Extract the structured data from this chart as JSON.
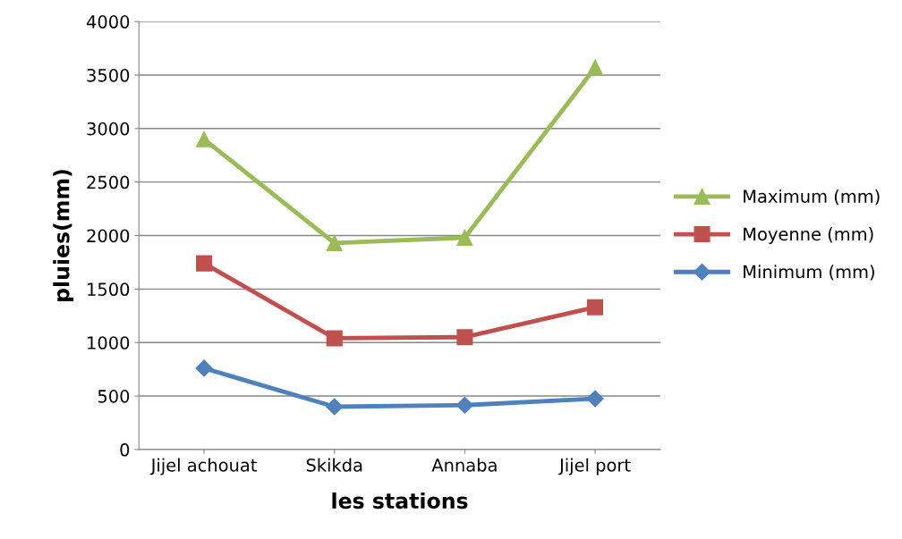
{
  "chart_data": {
    "type": "line",
    "xlabel": "les stations",
    "ylabel": "pluies(mm)",
    "categories": [
      "Jijel achouat",
      "Skikda",
      "Annaba",
      "Jijel port"
    ],
    "series": [
      {
        "name": "Maximum (mm)",
        "color": "#9bbb59",
        "marker": "triangle",
        "values": [
          2900,
          1930,
          1980,
          3570
        ]
      },
      {
        "name": "Moyenne (mm)",
        "color": "#c0504d",
        "marker": "square",
        "values": [
          1740,
          1040,
          1050,
          1330
        ]
      },
      {
        "name": "Minimum (mm)",
        "color": "#4f81bd",
        "marker": "diamond",
        "values": [
          760,
          400,
          415,
          475
        ]
      }
    ],
    "ylim": [
      0,
      4000
    ],
    "yticks": [
      0,
      500,
      1000,
      1500,
      2000,
      2500,
      3000,
      3500,
      4000
    ],
    "grid": "y",
    "legend": "right",
    "line_style": "solid"
  }
}
